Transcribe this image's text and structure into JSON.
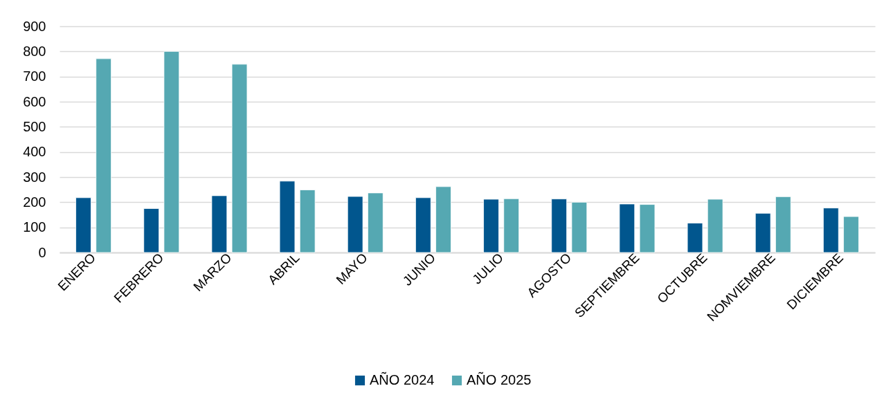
{
  "chart_data": {
    "type": "bar",
    "categories": [
      "ENERO",
      "FEBRERO",
      "MARZO",
      "ABRIL",
      "MAYO",
      "JUNIO",
      "JULIO",
      "AGOSTO",
      "SEPTIEMBRE",
      "OCTUBRE",
      "NOMVIEMBRE",
      "DICIEMBRE"
    ],
    "series": [
      {
        "name": "AÑO 2024",
        "color": "#01568e",
        "values": [
          218,
          175,
          226,
          284,
          223,
          218,
          212,
          213,
          193,
          117,
          156,
          177
        ]
      },
      {
        "name": "AÑO 2025",
        "color": "#55a8b2",
        "values": [
          771,
          800,
          749,
          249,
          237,
          262,
          214,
          200,
          191,
          212,
          222,
          143
        ]
      }
    ],
    "ylim": [
      0,
      900
    ],
    "yticks": [
      0,
      100,
      200,
      300,
      400,
      500,
      600,
      700,
      800,
      900
    ],
    "grid": "y",
    "legend": "bottom"
  }
}
